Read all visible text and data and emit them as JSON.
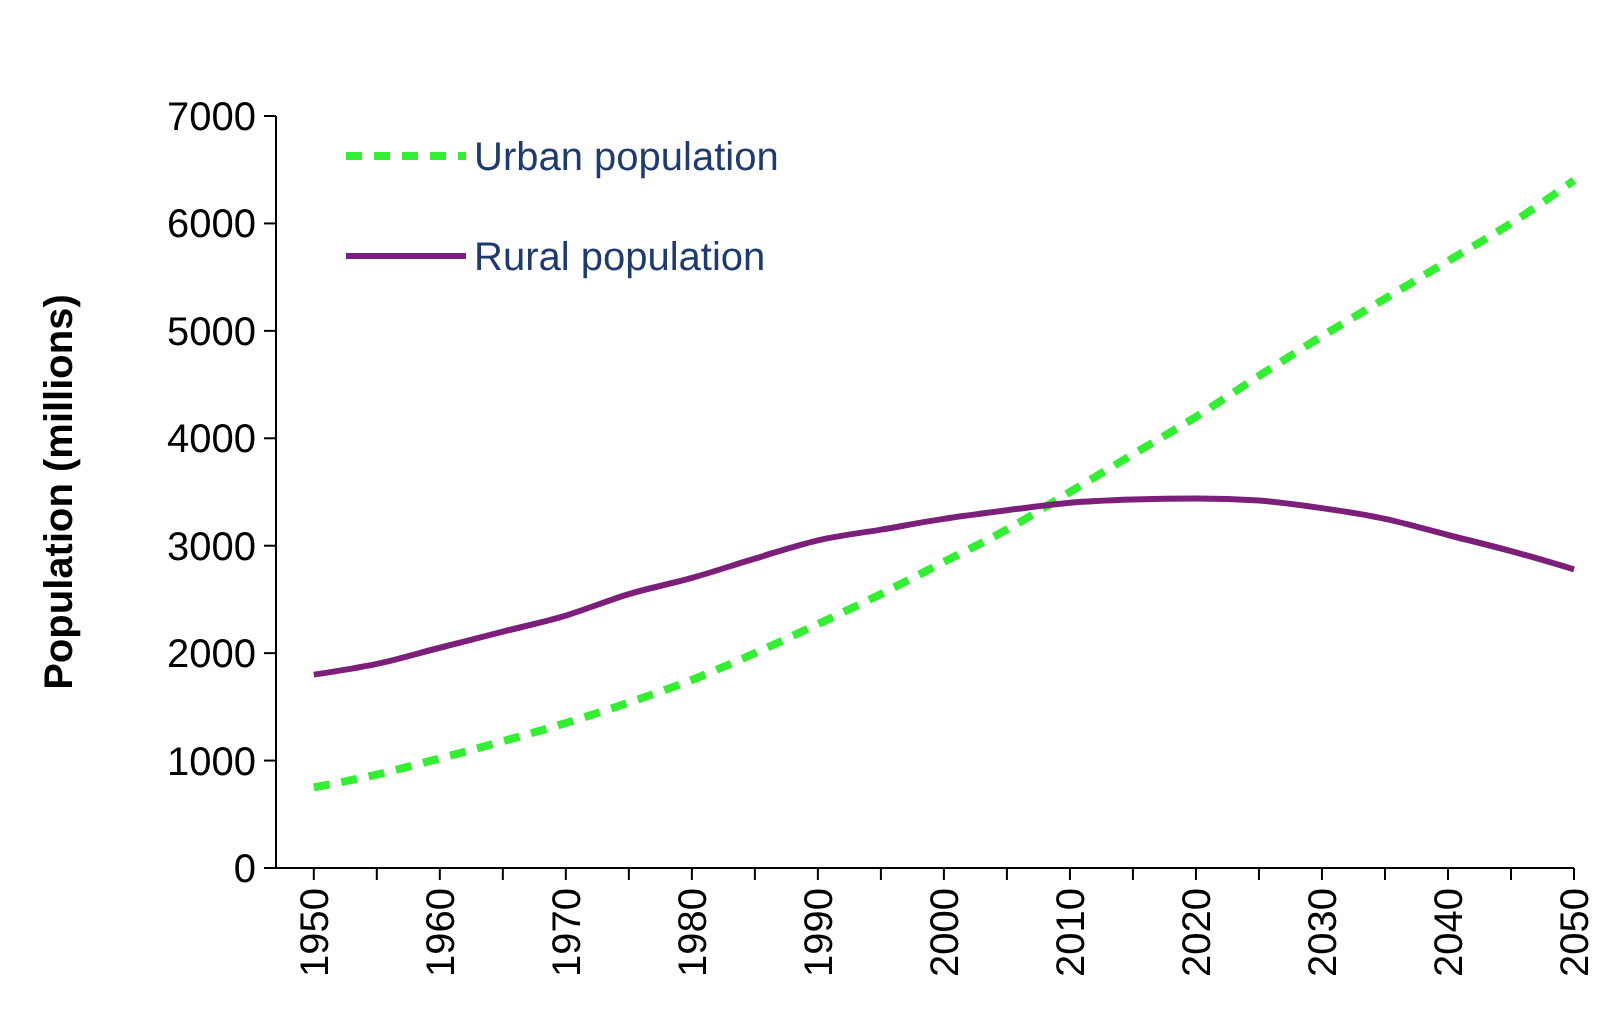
{
  "chart_data": {
    "type": "line",
    "ylabel": "Population (millions)",
    "x": [
      1950,
      1955,
      1960,
      1965,
      1970,
      1975,
      1980,
      1985,
      1990,
      1995,
      2000,
      2005,
      2010,
      2015,
      2020,
      2025,
      2030,
      2035,
      2040,
      2045,
      2050
    ],
    "xlim": [
      1947,
      2050
    ],
    "xticks": [
      1950,
      {
        "value": 1955,
        "label": null
      },
      1960,
      {
        "value": 1965,
        "label": null
      },
      1970,
      {
        "value": 1975,
        "label": null
      },
      1980,
      {
        "value": 1985,
        "label": null
      },
      1990,
      {
        "value": 1995,
        "label": null
      },
      2000,
      {
        "value": 2005,
        "label": null
      },
      2010,
      {
        "value": 2015,
        "label": null
      },
      2020,
      {
        "value": 2025,
        "label": null
      },
      2030,
      {
        "value": 2035,
        "label": null
      },
      2040,
      {
        "value": 2045,
        "label": null
      },
      2050
    ],
    "ylim": [
      0,
      7000
    ],
    "yticks": [
      0,
      1000,
      2000,
      3000,
      4000,
      5000,
      6000,
      7000
    ],
    "grid": false,
    "legend": "top left",
    "series": [
      {
        "name": "Urban population",
        "color": "#33ee33",
        "line_style": "dashed",
        "values": [
          750,
          870,
          1020,
          1180,
          1350,
          1540,
          1750,
          2000,
          2270,
          2550,
          2850,
          3150,
          3500,
          3850,
          4200,
          4580,
          4950,
          5300,
          5650,
          6000,
          6400
        ]
      },
      {
        "name": "Rural population",
        "color": "#7b1f7b",
        "line_style": "solid",
        "values": [
          1800,
          1900,
          2050,
          2200,
          2350,
          2550,
          2700,
          2880,
          3050,
          3150,
          3250,
          3330,
          3400,
          3430,
          3440,
          3420,
          3350,
          3250,
          3100,
          2950,
          2780
        ]
      }
    ]
  }
}
